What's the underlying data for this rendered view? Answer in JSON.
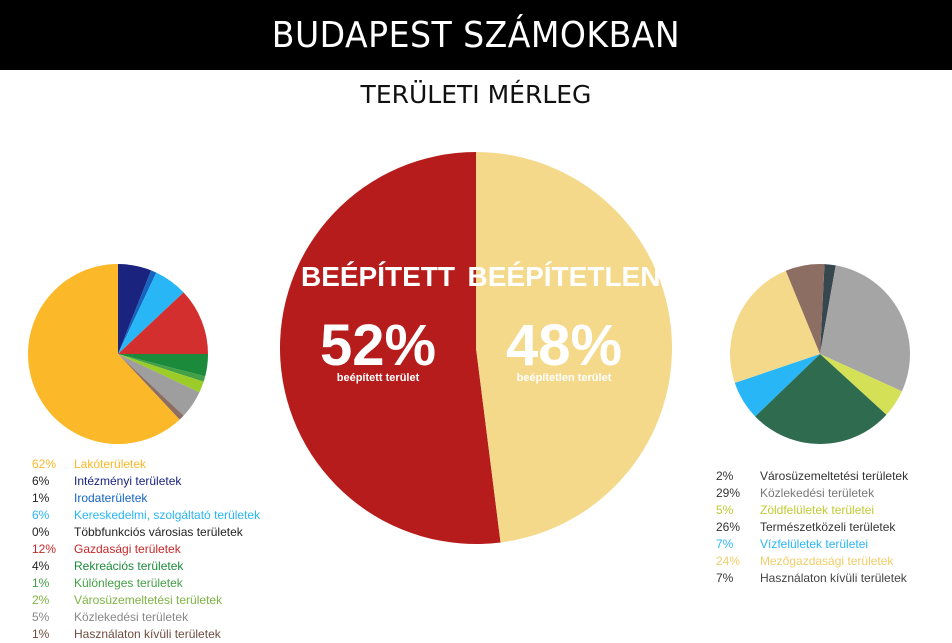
{
  "header": {
    "title": "BUDAPEST SZÁMOKBAN"
  },
  "subtitle": "TERÜLETI MÉRLEG",
  "chart_data": [
    {
      "type": "pie",
      "id": "main",
      "slices": [
        {
          "label": "BEÉPÍTETT",
          "value": 52,
          "value_label": "52%",
          "caption": "beépített terület",
          "color": "#b71c1c"
        },
        {
          "label": "BEÉPÍTETLEN",
          "value": 48,
          "value_label": "48%",
          "caption": "beépítetlen terület",
          "color": "#f5d98a"
        }
      ]
    },
    {
      "type": "pie",
      "id": "left",
      "slices": [
        {
          "value": 62,
          "value_label": "62%",
          "label": "Lakóterületek",
          "color": "#fbb829"
        },
        {
          "value": 6,
          "value_label": "6%",
          "label": "Intézményi területek",
          "color": "#1a237e"
        },
        {
          "value": 1,
          "value_label": "1%",
          "label": "Irodaterületek",
          "color": "#1565c0"
        },
        {
          "value": 6,
          "value_label": "6%",
          "label": "Kereskedelmi, szolgáltató területek",
          "color": "#29b6f6"
        },
        {
          "value": 0,
          "value_label": "0%",
          "label": "Többfunkciós városias területek",
          "color": "#222222"
        },
        {
          "value": 12,
          "value_label": "12%",
          "label": "Gazdasági területek",
          "color": "#d32f2f"
        },
        {
          "value": 4,
          "value_label": "4%",
          "label": "Rekreációs területek",
          "color": "#1b8a3a"
        },
        {
          "value": 1,
          "value_label": "1%",
          "label": "Különleges területek",
          "color": "#43a047"
        },
        {
          "value": 2,
          "value_label": "2%",
          "label": "Városüzemeltetési területek",
          "color": "#9ccc28"
        },
        {
          "value": 5,
          "value_label": "5%",
          "label": "Közlekedési területek",
          "color": "#9e9e9e"
        },
        {
          "value": 1,
          "value_label": "1%",
          "label": "Használaton kívüli területek",
          "color": "#8d6e63"
        }
      ]
    },
    {
      "type": "pie",
      "id": "right",
      "slices": [
        {
          "value": 2,
          "value_label": "2%",
          "label": "Városüzemeltetési területek",
          "color": "#37474f"
        },
        {
          "value": 29,
          "value_label": "29%",
          "label": "Közlekedési területek",
          "color": "#a5a5a5"
        },
        {
          "value": 5,
          "value_label": "5%",
          "label": "Zöldfelületek területei",
          "color": "#d4e157"
        },
        {
          "value": 26,
          "value_label": "26%",
          "label": "Természetközeli területek",
          "color": "#2e6b4f"
        },
        {
          "value": 7,
          "value_label": "7%",
          "label": "Vízfelületek területei",
          "color": "#29b6f6"
        },
        {
          "value": 24,
          "value_label": "24%",
          "label": "Mezőgazdasági területek",
          "color": "#f5d98a"
        },
        {
          "value": 7,
          "value_label": "7%",
          "label": "Használaton kívüli területek",
          "color": "#8d6e63"
        }
      ]
    }
  ],
  "legend_colors": {
    "left": [
      "#fbb829",
      "#1a237e",
      "#1565c0",
      "#29b6f6",
      "#222222",
      "#c62828",
      "#1b8a3a",
      "#43a047",
      "#7cb342",
      "#888888",
      "#6d4c41"
    ],
    "right": [
      "#333333",
      "#777777",
      "#c0ca33",
      "#333333",
      "#29b6f6",
      "#f0cd6a",
      "#444444"
    ]
  }
}
